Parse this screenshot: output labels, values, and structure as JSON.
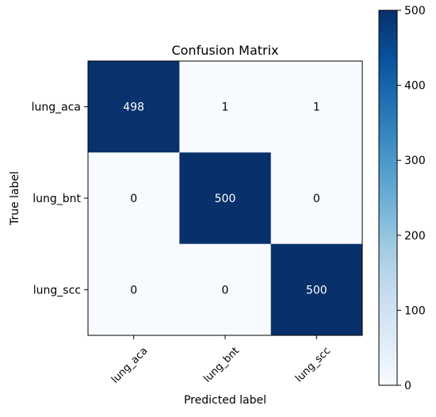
{
  "chart_data": {
    "type": "heatmap",
    "title": "Confusion Matrix",
    "xlabel": "Predicted label",
    "ylabel": "True label",
    "x_categories": [
      "lung_aca",
      "lung_bnt",
      "lung_scc"
    ],
    "y_categories": [
      "lung_aca",
      "lung_bnt",
      "lung_scc"
    ],
    "values": [
      [
        498,
        1,
        1
      ],
      [
        0,
        500,
        0
      ],
      [
        0,
        0,
        500
      ]
    ],
    "colormap": "Blues",
    "color_range": [
      0,
      500
    ],
    "colorbar_ticks": [
      0,
      100,
      200,
      300,
      400,
      500
    ],
    "low_color": "#f7fbff",
    "high_color": "#08306b",
    "text_light": "#ffffff",
    "text_dark": "#000000"
  }
}
